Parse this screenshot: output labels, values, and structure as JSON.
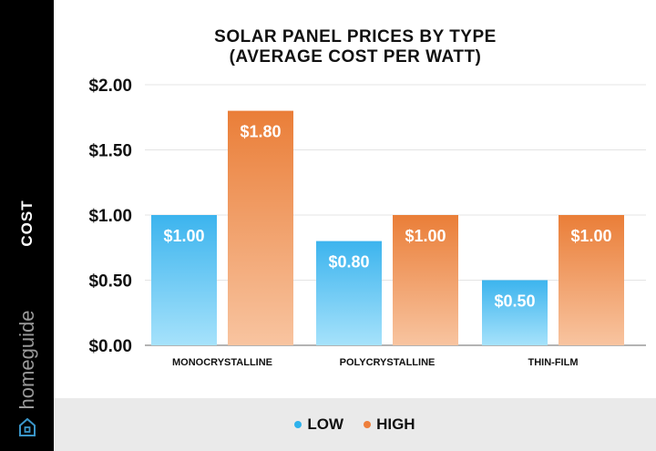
{
  "sidebar": {
    "axis_title": "COST",
    "brand": "homeguide",
    "brand_icon": "house-icon"
  },
  "chart_data": {
    "type": "bar",
    "title_lines": [
      "SOLAR PANEL PRICES BY TYPE",
      "(AVERAGE COST PER WATT)"
    ],
    "ylabel": "COST",
    "ylim": [
      0,
      2.0
    ],
    "yticks": [
      0,
      0.5,
      1.0,
      1.5,
      2.0
    ],
    "ytick_labels": [
      "$0.00",
      "$0.50",
      "$1.00",
      "$1.50",
      "$2.00"
    ],
    "categories": [
      "MONOCRYSTALLINE",
      "POLYCRYSTALLINE",
      "THIN-FILM"
    ],
    "series": [
      {
        "name": "LOW",
        "values": [
          1.0,
          0.8,
          0.5
        ],
        "labels": [
          "$1.00",
          "$0.80",
          "$0.50"
        ],
        "color_top": "#3cb4ee",
        "color_bottom": "#a6e2fb"
      },
      {
        "name": "HIGH",
        "values": [
          1.8,
          1.0,
          1.0
        ],
        "labels": [
          "$1.80",
          "$1.00",
          "$1.00"
        ],
        "color_top": "#ea7e38",
        "color_bottom": "#f8c4a0"
      }
    ],
    "grid": true,
    "legend_position": "bottom"
  },
  "legend": {
    "items": [
      {
        "label": "LOW",
        "color": "#2eb2ec"
      },
      {
        "label": "HIGH",
        "color": "#ee7f3c"
      }
    ]
  }
}
